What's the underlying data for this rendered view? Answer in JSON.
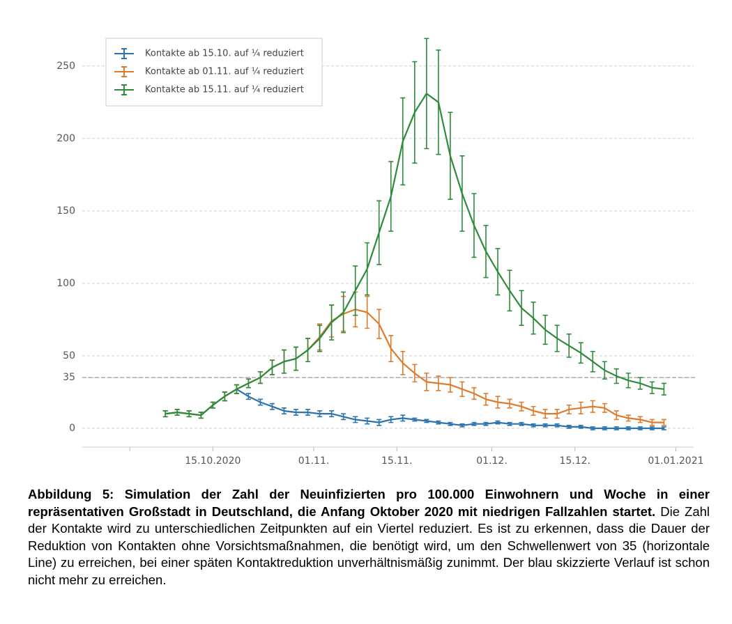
{
  "chart_data": {
    "type": "line",
    "x": [
      "2020-10-07",
      "2020-10-09",
      "2020-10-11",
      "2020-10-13",
      "2020-10-15",
      "2020-10-17",
      "2020-10-19",
      "2020-10-21",
      "2020-10-23",
      "2020-10-25",
      "2020-10-27",
      "2020-10-29",
      "2020-10-31",
      "2020-11-02",
      "2020-11-04",
      "2020-11-06",
      "2020-11-08",
      "2020-11-10",
      "2020-11-12",
      "2020-11-14",
      "2020-11-16",
      "2020-11-18",
      "2020-11-20",
      "2020-11-22",
      "2020-11-24",
      "2020-11-26",
      "2020-11-28",
      "2020-11-30",
      "2020-12-02",
      "2020-12-04",
      "2020-12-06",
      "2020-12-08",
      "2020-12-10",
      "2020-12-12",
      "2020-12-14",
      "2020-12-16",
      "2020-12-18",
      "2020-12-20",
      "2020-12-22",
      "2020-12-24",
      "2020-12-26",
      "2020-12-28",
      "2020-12-30"
    ],
    "series": [
      {
        "name": "Kontakte ab 15.10. auf ¼ reduziert",
        "color": "#2b73ad",
        "values": [
          10,
          11,
          10,
          9,
          16,
          22,
          27,
          22,
          18,
          15,
          12,
          11,
          11,
          10,
          10,
          8,
          6,
          5,
          4,
          6,
          7,
          6,
          5,
          4,
          3,
          2,
          3,
          3,
          4,
          3,
          3,
          2,
          2,
          2,
          1,
          1,
          0,
          0,
          0,
          0,
          0,
          0,
          0
        ],
        "errors": [
          2,
          2,
          2,
          2,
          2,
          3,
          3,
          2,
          2,
          2,
          2,
          2,
          2,
          2,
          2,
          2,
          2,
          2,
          2,
          2,
          2,
          1,
          1,
          1,
          1,
          1,
          1,
          1,
          1,
          1,
          1,
          1,
          1,
          1,
          1,
          1,
          1,
          1,
          1,
          1,
          1,
          1,
          1
        ]
      },
      {
        "name": "Kontakte ab 01.11. auf ¼ reduziert",
        "color": "#e07a2c",
        "values": [
          10,
          11,
          10,
          9,
          16,
          22,
          27,
          31,
          35,
          42,
          46,
          48,
          54,
          63,
          74,
          79,
          82,
          80,
          72,
          55,
          45,
          38,
          32,
          31,
          30,
          27,
          24,
          20,
          18,
          17,
          15,
          12,
          10,
          10,
          13,
          14,
          15,
          14,
          9,
          7,
          6,
          4,
          4
        ],
        "errors": [
          2,
          2,
          2,
          2,
          2,
          3,
          3,
          3,
          4,
          5,
          8,
          8,
          8,
          9,
          11,
          12,
          12,
          11,
          10,
          9,
          8,
          6,
          6,
          5,
          5,
          5,
          4,
          4,
          4,
          3,
          3,
          3,
          3,
          3,
          3,
          4,
          4,
          3,
          3,
          2,
          2,
          2,
          2
        ]
      },
      {
        "name": "Kontakte ab 15.11. auf ¼ reduziert",
        "color": "#2e8b3c",
        "values": [
          10,
          11,
          10,
          9,
          16,
          22,
          27,
          31,
          35,
          42,
          46,
          48,
          54,
          62,
          73,
          80,
          95,
          110,
          135,
          160,
          198,
          218,
          231,
          225,
          188,
          162,
          140,
          122,
          108,
          95,
          83,
          76,
          68,
          62,
          57,
          52,
          46,
          40,
          36,
          33,
          31,
          28,
          27
        ],
        "errors": [
          2,
          2,
          2,
          2,
          2,
          3,
          3,
          3,
          4,
          5,
          8,
          8,
          8,
          9,
          12,
          14,
          17,
          18,
          22,
          24,
          30,
          35,
          38,
          36,
          30,
          26,
          22,
          18,
          16,
          14,
          12,
          11,
          10,
          9,
          8,
          7,
          7,
          6,
          5,
          5,
          4,
          4,
          4
        ]
      }
    ],
    "xlim": [
      "2020-09-23",
      "2021-01-04"
    ],
    "xticks": [
      {
        "value": "2020-10-01",
        "label": null
      },
      {
        "value": "2020-10-15",
        "label": "15.10.2020"
      },
      {
        "value": "2020-11-01",
        "label": "01.11."
      },
      {
        "value": "2020-11-15",
        "label": "15.11."
      },
      {
        "value": "2020-12-01",
        "label": "01.12."
      },
      {
        "value": "2020-12-15",
        "label": "15.12."
      },
      {
        "value": "2021-01-01",
        "label": "01.01.2021"
      }
    ],
    "ylim": [
      -13,
      272
    ],
    "yticks": [
      0,
      35,
      50,
      100,
      150,
      200,
      250
    ],
    "threshold": 35,
    "grid": true,
    "legend": "upper left"
  },
  "caption": {
    "bold": "Abbildung 5: Simulation der Zahl der Neuinfizierten pro 100.000 Einwohnern und Woche in einer repräsentativen Großstadt in Deutschland, die Anfang Oktober 2020 mit niedrigen Fallzahlen startet.",
    "text": "Die Zahl der Kontakte wird zu unterschiedlichen Zeitpunkten auf ein Viertel reduziert. Es ist zu erkennen, dass die Dauer der Reduktion von Kontakten ohne Vorsichtsmaßnahmen, die benötigt wird, um den Schwellenwert von 35 (horizontale Line) zu erreichen, bei einer späten Kontaktreduktion unverhältnismäßig zunimmt. Der blau skizzierte Verlauf ist schon nicht mehr zu erreichen."
  }
}
